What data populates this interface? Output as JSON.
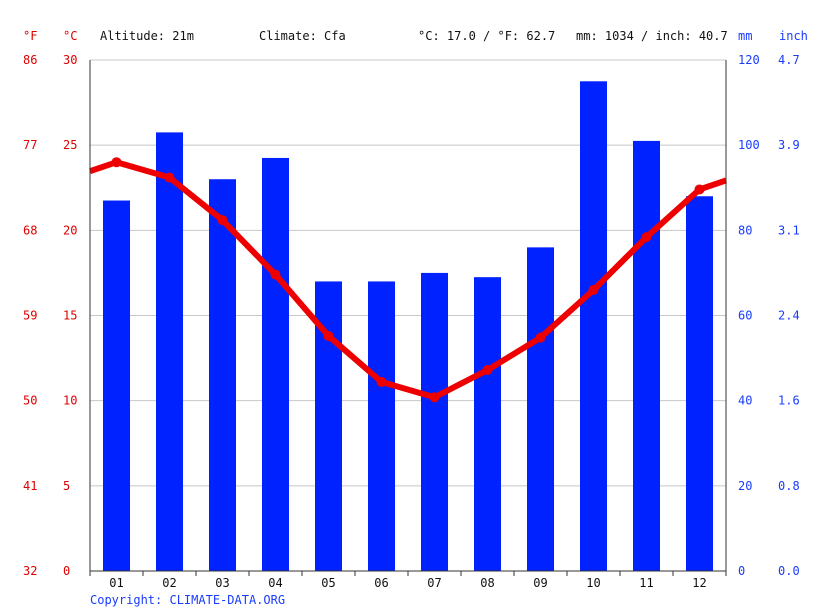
{
  "header": {
    "f_unit": "°F",
    "c_unit": "°C",
    "altitude": "Altitude: 21m",
    "climate": "Climate: Cfa",
    "temp_summary": "°C: 17.0 / °F: 62.7",
    "precip_summary": "mm: 1034 / inch: 40.7",
    "mm_unit": "mm",
    "inch_unit": "inch"
  },
  "copyright": "Copyright: CLIMATE-DATA.ORG",
  "colors": {
    "bars": "#0022ff",
    "line": "#ee0000",
    "left_axis_text": "#e00000",
    "right_axis_text": "#1a3cff"
  },
  "chart_data": {
    "type": "bar+line",
    "categories": [
      "01",
      "02",
      "03",
      "04",
      "05",
      "06",
      "07",
      "08",
      "09",
      "10",
      "11",
      "12"
    ],
    "series": [
      {
        "type": "bar",
        "axis": "right",
        "unit": "mm",
        "values": [
          87,
          103,
          92,
          97,
          68,
          68,
          70,
          69,
          76,
          115,
          101,
          88
        ]
      },
      {
        "type": "line",
        "axis": "left",
        "unit": "°C",
        "values": [
          24.0,
          23.1,
          20.6,
          17.4,
          13.8,
          11.1,
          10.2,
          11.8,
          13.7,
          16.5,
          19.6,
          22.4
        ]
      }
    ],
    "left_axis": {
      "ylim": [
        0,
        30
      ],
      "ticks_c": [
        "0",
        "5",
        "10",
        "15",
        "20",
        "25",
        "30"
      ],
      "ticks_f": [
        "32",
        "41",
        "50",
        "59",
        "68",
        "77",
        "86"
      ]
    },
    "right_axis": {
      "ylim": [
        0,
        120
      ],
      "ticks_mm": [
        "0",
        "20",
        "40",
        "60",
        "80",
        "100",
        "120"
      ],
      "ticks_inch": [
        "0.0",
        "0.8",
        "1.6",
        "2.4",
        "3.1",
        "3.9",
        "4.7"
      ]
    },
    "grid": true
  }
}
